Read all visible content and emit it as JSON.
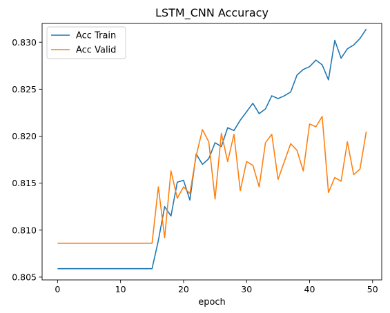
{
  "chart_data": {
    "type": "line",
    "title": "LSTM_CNN Accuracy",
    "xlabel": "epoch",
    "ylabel": "",
    "xlim": [
      -2.45,
      51.45
    ],
    "ylim": [
      0.8047,
      0.832
    ],
    "xticks": [
      0,
      10,
      20,
      30,
      40,
      50
    ],
    "yticks": [
      0.805,
      0.81,
      0.815,
      0.82,
      0.825,
      0.83
    ],
    "ytick_labels": [
      "0.805",
      "0.810",
      "0.815",
      "0.820",
      "0.825",
      "0.830"
    ],
    "grid": false,
    "legend_position": "top-left",
    "x": [
      0,
      1,
      2,
      3,
      4,
      5,
      6,
      7,
      8,
      9,
      10,
      11,
      12,
      13,
      14,
      15,
      16,
      17,
      18,
      19,
      20,
      21,
      22,
      23,
      24,
      25,
      26,
      27,
      28,
      29,
      30,
      31,
      32,
      33,
      34,
      35,
      36,
      37,
      38,
      39,
      40,
      41,
      42,
      43,
      44,
      45,
      46,
      47,
      48,
      49
    ],
    "series": [
      {
        "name": "Acc Train",
        "color": "#1f77b4",
        "values": [
          0.8059,
          0.8059,
          0.8059,
          0.8059,
          0.8059,
          0.8059,
          0.8059,
          0.8059,
          0.8059,
          0.8059,
          0.8059,
          0.8059,
          0.8059,
          0.8059,
          0.8059,
          0.8059,
          0.8089,
          0.8125,
          0.8115,
          0.8151,
          0.8153,
          0.8132,
          0.8181,
          0.817,
          0.8176,
          0.8193,
          0.8189,
          0.8209,
          0.8206,
          0.8217,
          0.8226,
          0.8235,
          0.8224,
          0.8229,
          0.8243,
          0.824,
          0.8243,
          0.8247,
          0.8265,
          0.8271,
          0.8274,
          0.8281,
          0.8276,
          0.826,
          0.8302,
          0.8283,
          0.8293,
          0.8297,
          0.8304,
          0.8314
        ]
      },
      {
        "name": "Acc Valid",
        "color": "#ff7f0e",
        "values": [
          0.8086,
          0.8086,
          0.8086,
          0.8086,
          0.8086,
          0.8086,
          0.8086,
          0.8086,
          0.8086,
          0.8086,
          0.8086,
          0.8086,
          0.8086,
          0.8086,
          0.8086,
          0.8086,
          0.8146,
          0.8092,
          0.8163,
          0.8134,
          0.8146,
          0.8139,
          0.8179,
          0.8207,
          0.8194,
          0.8133,
          0.8203,
          0.8173,
          0.8202,
          0.8142,
          0.8173,
          0.8169,
          0.8146,
          0.8193,
          0.8202,
          0.8154,
          0.8173,
          0.8192,
          0.8185,
          0.8163,
          0.8213,
          0.821,
          0.8221,
          0.814,
          0.8156,
          0.8152,
          0.8194,
          0.8159,
          0.8165,
          0.8205
        ]
      }
    ]
  }
}
